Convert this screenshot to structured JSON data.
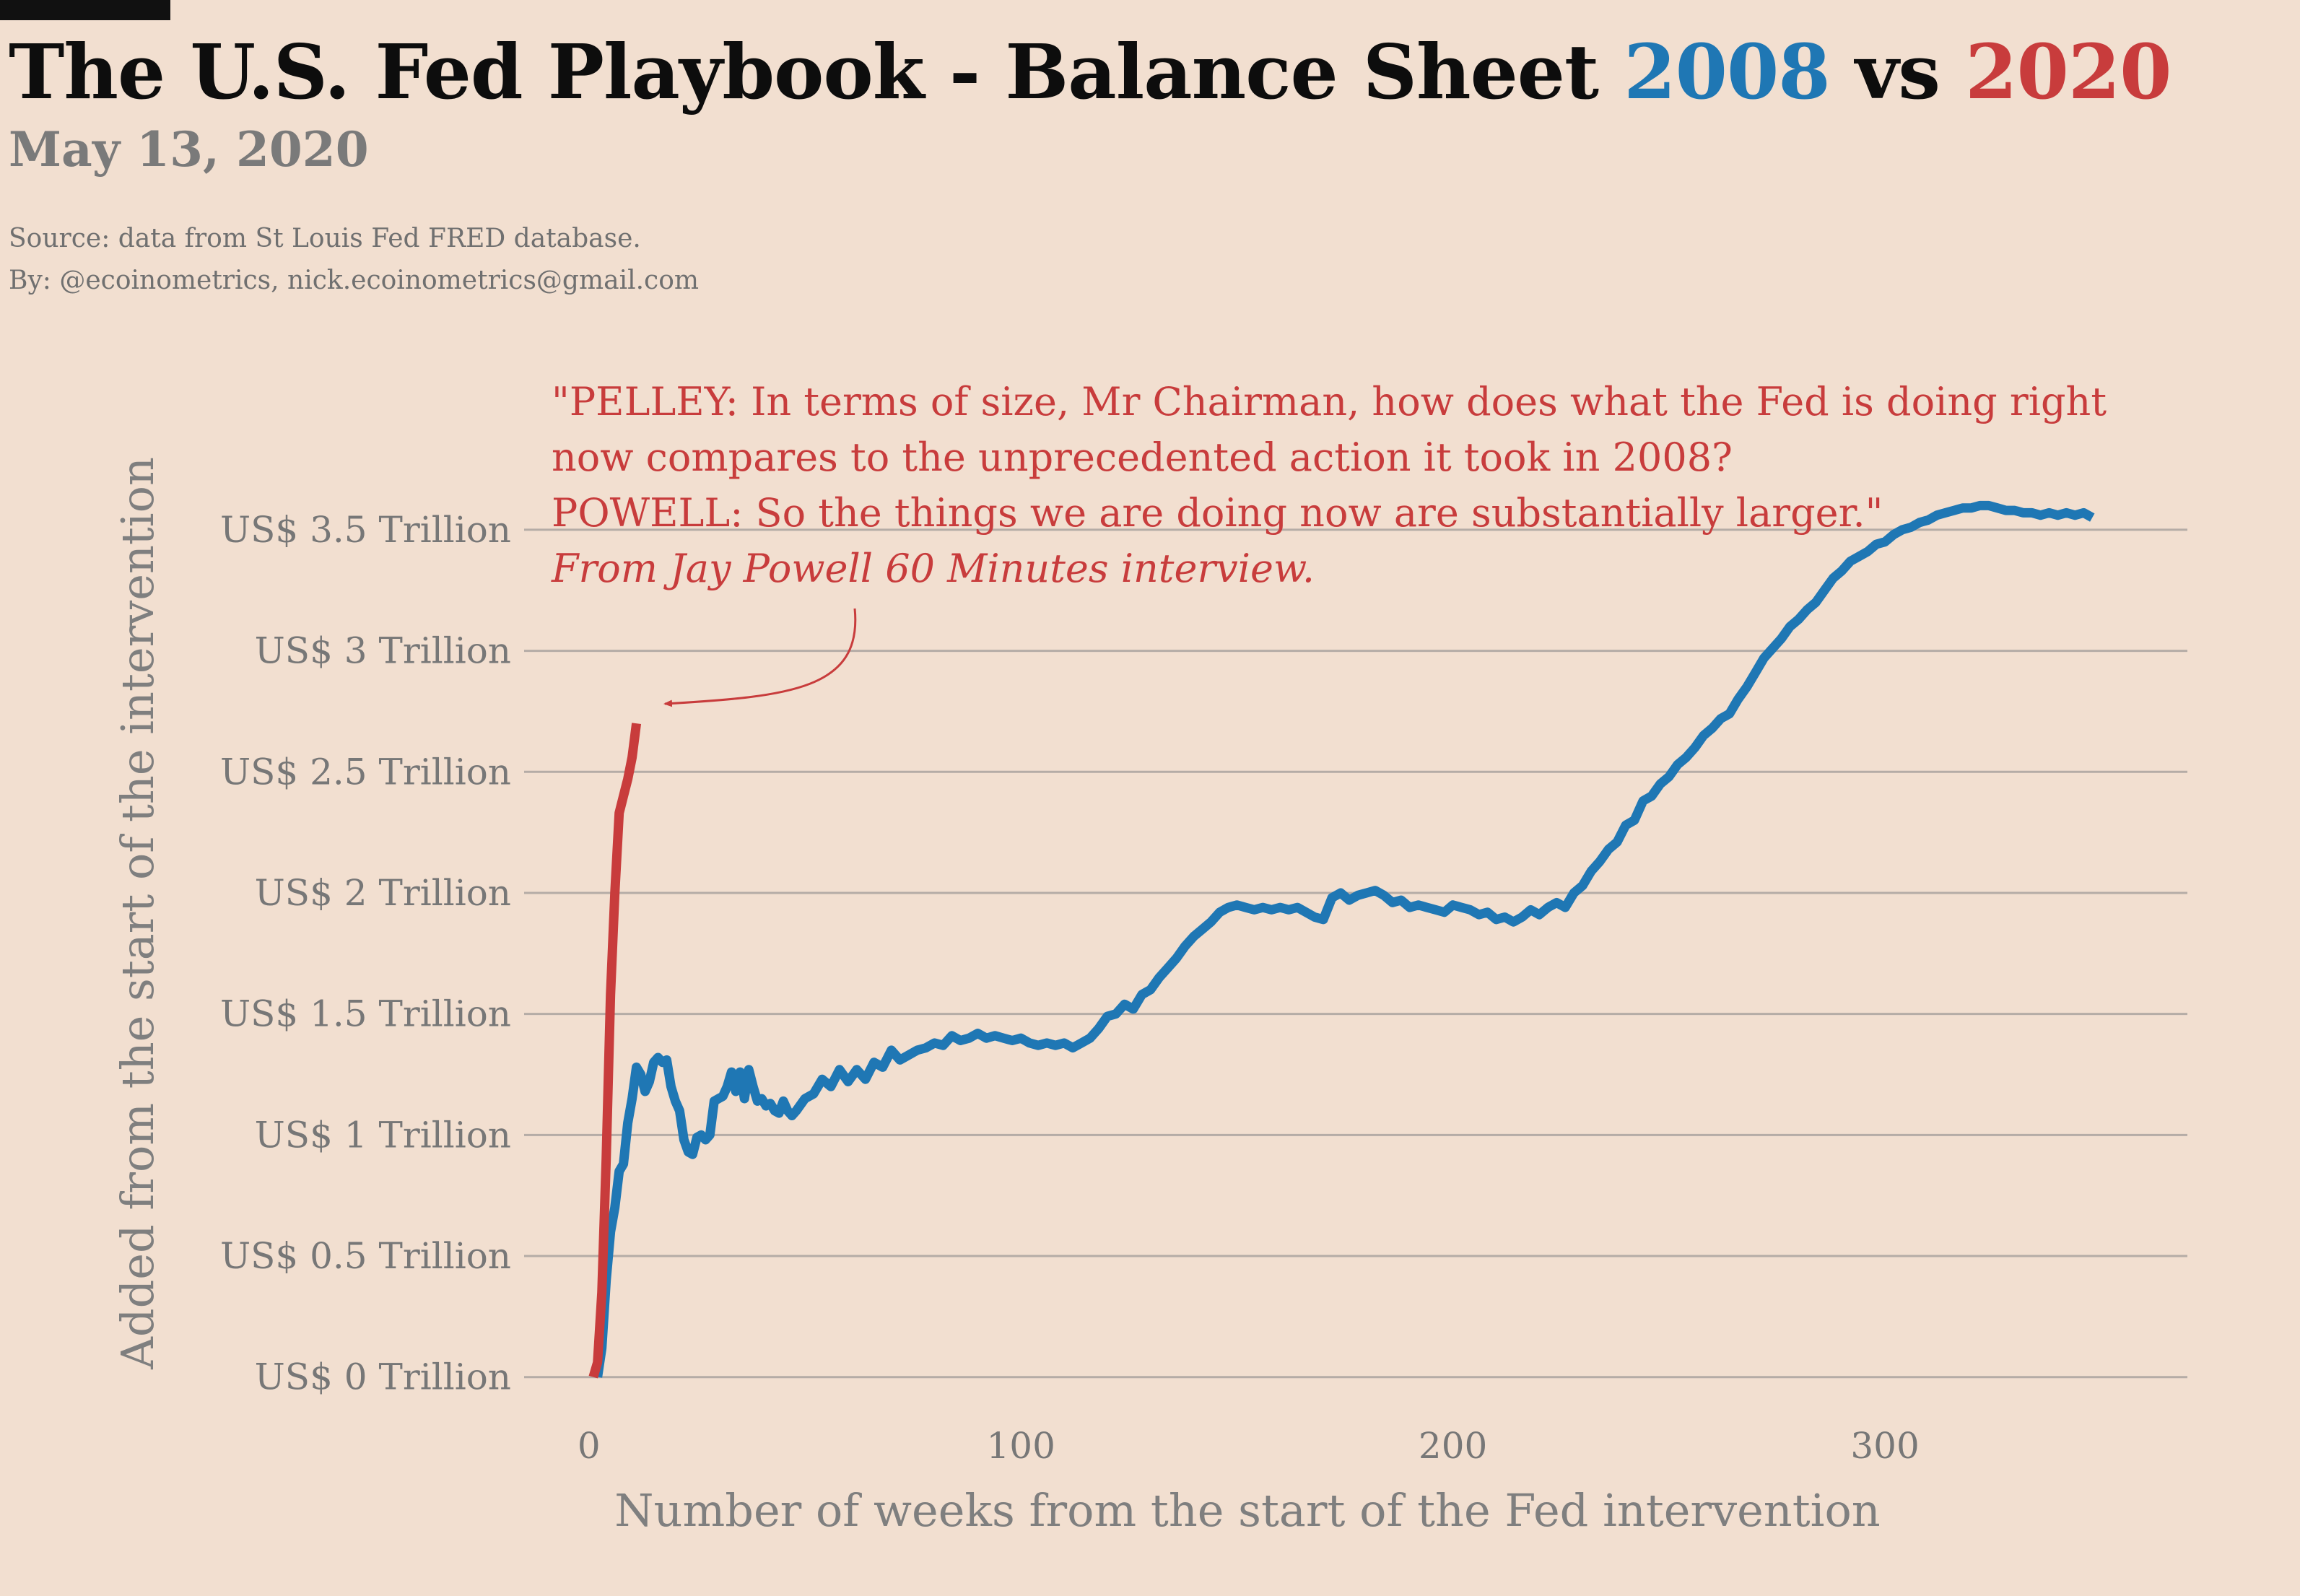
{
  "header": {
    "title_main": "The U.S. Fed Playbook - Balance Sheet",
    "title_2008": "2008",
    "title_vs": "vs",
    "title_2020": "2020",
    "subtitle": "May 13, 2020",
    "source_line1": "Source: data from  St Louis Fed FRED database.",
    "source_line2": "By: @ecoinometrics, nick.ecoinometrics@gmail.com"
  },
  "annotation": {
    "line1": "\"PELLEY: In terms of size, Mr Chairman, how does what the Fed is doing right",
    "line2": "now compares to the unprecedented action it took in 2008?",
    "line3": "POWELL: So the things we are doing now are substantially larger.\"",
    "line4": "From Jay Powell 60 Minutes interview."
  },
  "colors": {
    "background": "#f2dfd0",
    "series_2008": "#1f77b4",
    "series_2020": "#c83c3c",
    "grid": "#b5aca6",
    "text_gray": "#777777"
  },
  "chart_data": {
    "type": "line",
    "title": "The U.S. Fed Playbook - Balance Sheet 2008 vs 2020",
    "subtitle": "May 13, 2020",
    "xlabel": "Number of weeks from the start of the Fed intervention",
    "ylabel": "Added from the start of the intervention",
    "xlim": [
      -15,
      370
    ],
    "ylim": [
      -0.15,
      3.78
    ],
    "x_ticks": [
      0,
      100,
      200,
      300
    ],
    "y_ticks": [
      0,
      0.5,
      1,
      1.5,
      2,
      2.5,
      3,
      3.5
    ],
    "y_tick_labels": [
      "US$ 0 Trillion",
      "US$ 0.5 Trillion",
      "US$ 1 Trillion",
      "US$ 1.5 Trillion",
      "US$ 2 Trillion",
      "US$ 2.5 Trillion",
      "US$ 3 Trillion",
      "US$ 3.5 Trillion"
    ],
    "grid": "horizontal",
    "legend": "none",
    "series": [
      {
        "name": "2008",
        "color": "#1f77b4",
        "points": [
          [
            2,
            0
          ],
          [
            3,
            0.12
          ],
          [
            4,
            0.4
          ],
          [
            5,
            0.6
          ],
          [
            6,
            0.7
          ],
          [
            7,
            0.85
          ],
          [
            8,
            0.88
          ],
          [
            9,
            1.05
          ],
          [
            10,
            1.15
          ],
          [
            11,
            1.28
          ],
          [
            12,
            1.25
          ],
          [
            13,
            1.18
          ],
          [
            14,
            1.22
          ],
          [
            15,
            1.3
          ],
          [
            16,
            1.32
          ],
          [
            17,
            1.3
          ],
          [
            18,
            1.31
          ],
          [
            19,
            1.2
          ],
          [
            20,
            1.14
          ],
          [
            21,
            1.1
          ],
          [
            22,
            0.98
          ],
          [
            23,
            0.93
          ],
          [
            24,
            0.92
          ],
          [
            25,
            0.99
          ],
          [
            26,
            1.0
          ],
          [
            27,
            0.98
          ],
          [
            28,
            1.0
          ],
          [
            29,
            1.14
          ],
          [
            30,
            1.15
          ],
          [
            31,
            1.16
          ],
          [
            32,
            1.2
          ],
          [
            33,
            1.26
          ],
          [
            34,
            1.18
          ],
          [
            35,
            1.26
          ],
          [
            36,
            1.15
          ],
          [
            37,
            1.27
          ],
          [
            38,
            1.2
          ],
          [
            39,
            1.14
          ],
          [
            40,
            1.15
          ],
          [
            41,
            1.12
          ],
          [
            42,
            1.13
          ],
          [
            43,
            1.1
          ],
          [
            44,
            1.09
          ],
          [
            45,
            1.14
          ],
          [
            46,
            1.1
          ],
          [
            47,
            1.08
          ],
          [
            48,
            1.1
          ],
          [
            50,
            1.15
          ],
          [
            52,
            1.17
          ],
          [
            54,
            1.23
          ],
          [
            56,
            1.2
          ],
          [
            58,
            1.27
          ],
          [
            60,
            1.22
          ],
          [
            62,
            1.27
          ],
          [
            64,
            1.23
          ],
          [
            66,
            1.3
          ],
          [
            68,
            1.28
          ],
          [
            70,
            1.35
          ],
          [
            72,
            1.31
          ],
          [
            74,
            1.33
          ],
          [
            76,
            1.35
          ],
          [
            78,
            1.36
          ],
          [
            80,
            1.38
          ],
          [
            82,
            1.37
          ],
          [
            84,
            1.41
          ],
          [
            86,
            1.39
          ],
          [
            88,
            1.4
          ],
          [
            90,
            1.42
          ],
          [
            92,
            1.4
          ],
          [
            94,
            1.41
          ],
          [
            96,
            1.4
          ],
          [
            98,
            1.39
          ],
          [
            100,
            1.4
          ],
          [
            102,
            1.38
          ],
          [
            104,
            1.37
          ],
          [
            106,
            1.38
          ],
          [
            108,
            1.37
          ],
          [
            110,
            1.38
          ],
          [
            112,
            1.36
          ],
          [
            114,
            1.38
          ],
          [
            116,
            1.4
          ],
          [
            118,
            1.44
          ],
          [
            120,
            1.49
          ],
          [
            122,
            1.5
          ],
          [
            124,
            1.54
          ],
          [
            126,
            1.52
          ],
          [
            128,
            1.58
          ],
          [
            130,
            1.6
          ],
          [
            132,
            1.65
          ],
          [
            134,
            1.69
          ],
          [
            136,
            1.73
          ],
          [
            138,
            1.78
          ],
          [
            140,
            1.82
          ],
          [
            142,
            1.85
          ],
          [
            144,
            1.88
          ],
          [
            146,
            1.92
          ],
          [
            148,
            1.94
          ],
          [
            150,
            1.95
          ],
          [
            152,
            1.94
          ],
          [
            154,
            1.93
          ],
          [
            156,
            1.94
          ],
          [
            158,
            1.93
          ],
          [
            160,
            1.94
          ],
          [
            162,
            1.93
          ],
          [
            164,
            1.94
          ],
          [
            166,
            1.92
          ],
          [
            168,
            1.9
          ],
          [
            170,
            1.89
          ],
          [
            172,
            1.98
          ],
          [
            174,
            2.0
          ],
          [
            176,
            1.97
          ],
          [
            178,
            1.99
          ],
          [
            180,
            2.0
          ],
          [
            182,
            2.01
          ],
          [
            184,
            1.99
          ],
          [
            186,
            1.96
          ],
          [
            188,
            1.97
          ],
          [
            190,
            1.94
          ],
          [
            192,
            1.95
          ],
          [
            194,
            1.94
          ],
          [
            196,
            1.93
          ],
          [
            198,
            1.92
          ],
          [
            200,
            1.95
          ],
          [
            202,
            1.94
          ],
          [
            204,
            1.93
          ],
          [
            206,
            1.91
          ],
          [
            208,
            1.92
          ],
          [
            210,
            1.89
          ],
          [
            212,
            1.9
          ],
          [
            214,
            1.88
          ],
          [
            216,
            1.9
          ],
          [
            218,
            1.93
          ],
          [
            220,
            1.91
          ],
          [
            222,
            1.94
          ],
          [
            224,
            1.96
          ],
          [
            226,
            1.94
          ],
          [
            228,
            2.0
          ],
          [
            230,
            2.03
          ],
          [
            232,
            2.09
          ],
          [
            234,
            2.13
          ],
          [
            236,
            2.18
          ],
          [
            238,
            2.21
          ],
          [
            240,
            2.28
          ],
          [
            242,
            2.3
          ],
          [
            244,
            2.38
          ],
          [
            246,
            2.4
          ],
          [
            248,
            2.45
          ],
          [
            250,
            2.48
          ],
          [
            252,
            2.53
          ],
          [
            254,
            2.56
          ],
          [
            256,
            2.6
          ],
          [
            258,
            2.65
          ],
          [
            260,
            2.68
          ],
          [
            262,
            2.72
          ],
          [
            264,
            2.74
          ],
          [
            266,
            2.8
          ],
          [
            268,
            2.85
          ],
          [
            270,
            2.91
          ],
          [
            272,
            2.97
          ],
          [
            274,
            3.01
          ],
          [
            276,
            3.05
          ],
          [
            278,
            3.1
          ],
          [
            280,
            3.13
          ],
          [
            282,
            3.17
          ],
          [
            284,
            3.2
          ],
          [
            286,
            3.25
          ],
          [
            288,
            3.3
          ],
          [
            290,
            3.33
          ],
          [
            292,
            3.37
          ],
          [
            294,
            3.39
          ],
          [
            296,
            3.41
          ],
          [
            298,
            3.44
          ],
          [
            300,
            3.45
          ],
          [
            302,
            3.48
          ],
          [
            304,
            3.5
          ],
          [
            306,
            3.51
          ],
          [
            308,
            3.53
          ],
          [
            310,
            3.54
          ],
          [
            312,
            3.56
          ],
          [
            314,
            3.57
          ],
          [
            316,
            3.58
          ],
          [
            318,
            3.59
          ],
          [
            320,
            3.59
          ],
          [
            322,
            3.6
          ],
          [
            324,
            3.6
          ],
          [
            326,
            3.59
          ],
          [
            328,
            3.58
          ],
          [
            330,
            3.58
          ],
          [
            332,
            3.57
          ],
          [
            334,
            3.57
          ],
          [
            336,
            3.56
          ],
          [
            338,
            3.57
          ],
          [
            340,
            3.56
          ],
          [
            342,
            3.57
          ],
          [
            344,
            3.56
          ],
          [
            346,
            3.57
          ],
          [
            348,
            3.55
          ]
        ]
      },
      {
        "name": "2020",
        "color": "#c83c3c",
        "points": [
          [
            1,
            0
          ],
          [
            2,
            0.06
          ],
          [
            3,
            0.35
          ],
          [
            4,
            0.9
          ],
          [
            5,
            1.58
          ],
          [
            6,
            2.0
          ],
          [
            7,
            2.33
          ],
          [
            8,
            2.4
          ],
          [
            9,
            2.47
          ],
          [
            10,
            2.56
          ],
          [
            11,
            2.7
          ]
        ]
      }
    ]
  }
}
